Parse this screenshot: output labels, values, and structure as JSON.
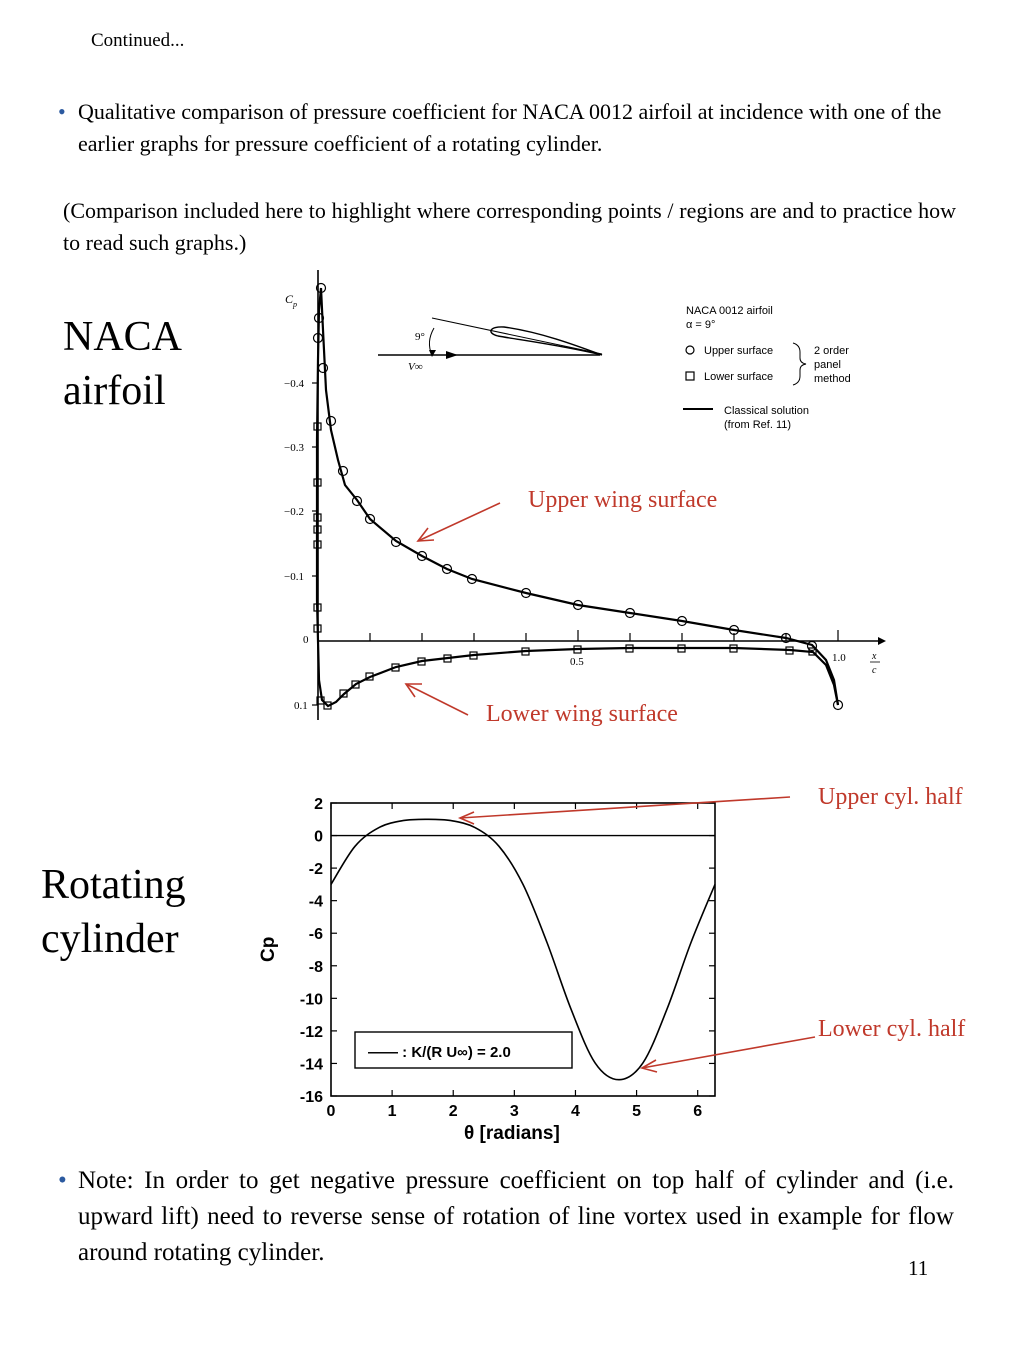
{
  "header": {
    "continued": "Continued..."
  },
  "bullet1": "Qualitative comparison of pressure coefficient for NACA 0012 airfoil at incidence with one of the earlier graphs for pressure coefficient of a rotating cylinder.",
  "note": "(Comparison included here to highlight where corresponding points / regions are and to practice how to read such graphs.)",
  "labels": {
    "naca_line1": "NACA",
    "naca_line2": "airfoil",
    "rot_line1": "Rotating",
    "rot_line2": "cylinder"
  },
  "annotations": {
    "upper_wing": "Upper  wing surface",
    "lower_wing": "Lower wing surface",
    "upper_cyl": "Upper cyl. half",
    "lower_cyl": "Lower cyl. half"
  },
  "colors": {
    "annotation": "#c0392b",
    "bullet": "#2c5aa0"
  },
  "bullet2": "Note: In order to get negative pressure coefficient on top half of cylinder and (i.e.  upward lift) need to reverse sense of rotation of line vortex used in example for flow around rotating cylinder.",
  "page_number": "11",
  "naca_plot": {
    "ylabel": "C",
    "ylabel_sub": "p",
    "y_ticks": [
      "−0.4",
      "−0.3",
      "−0.2",
      "−0.1",
      "0",
      "0.1"
    ],
    "x_ticks": [
      "0.5",
      "1.0"
    ],
    "xlabel_num": "x",
    "xlabel_den": "c",
    "legend_title": "NACA 0012 airfoil",
    "legend_alpha": "α = 9°",
    "legend_upper": "Upper surface",
    "legend_lower": "Lower surface",
    "legend_method_1": "2 order",
    "legend_method_2": "panel",
    "legend_method_3": "method",
    "legend_classical_1": "Classical solution",
    "legend_classical_2": "(from Ref. 11)",
    "angle_label": "9°",
    "vinf_label": "V∞"
  },
  "chart_data": [
    {
      "type": "line",
      "title": "",
      "xlabel": "θ [radians]",
      "ylabel": "Cp",
      "xlim": [
        0,
        6.2832
      ],
      "ylim": [
        -16,
        2
      ],
      "x_ticks": [
        "0",
        "1",
        "2",
        "3",
        "4",
        "5",
        "6"
      ],
      "y_ticks": [
        "2",
        "0",
        "-2",
        "-4",
        "-6",
        "-8",
        "-10",
        "-12",
        "-14",
        "-16"
      ],
      "legend": "—— : K/(R U∞) = 2.0",
      "series": [
        {
          "name": "K/(R U∞) = 2.0",
          "x": [
            0,
            0.3927,
            0.7854,
            1.1781,
            1.5708,
            1.9635,
            2.3562,
            2.7489,
            3.1416,
            3.5343,
            3.927,
            4.3197,
            4.7124,
            5.1051,
            5.4978,
            5.8905,
            6.2832
          ],
          "y": [
            -3,
            -0.66,
            0.49,
            0.92,
            1.0,
            0.92,
            0.49,
            -0.66,
            -3,
            -6.57,
            -10.66,
            -13.96,
            -15,
            -13.96,
            -10.66,
            -6.57,
            -3
          ]
        }
      ]
    }
  ]
}
